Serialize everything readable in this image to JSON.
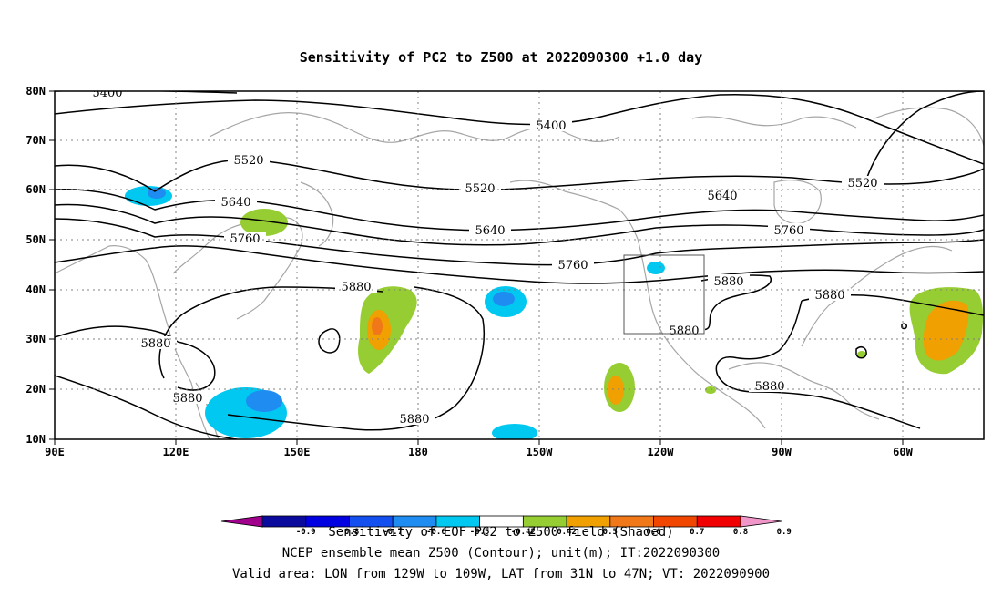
{
  "title": "Sensitivity of PC2 to Z500 at 2022090300 +1.0 day",
  "lon_labels": [
    "90E",
    "120E",
    "150E",
    "180",
    "150W",
    "120W",
    "90W",
    "60W"
  ],
  "lat_labels": [
    "80N",
    "70N",
    "60N",
    "50N",
    "40N",
    "30N",
    "20N",
    "10N"
  ],
  "contour_labels": [
    "5400",
    "5400",
    "5520",
    "5520",
    "5520",
    "5640",
    "5640",
    "5640",
    "5760",
    "5760",
    "5760",
    "5880",
    "5880",
    "5880",
    "5880",
    "5880",
    "5880",
    "5880",
    "5880"
  ],
  "colorbar": {
    "labels": [
      "-0.9",
      "-0.8",
      "-0.7",
      "-0.6",
      "-0.5",
      "-0.42",
      "0.42",
      "0.5",
      "0.6",
      "0.7",
      "0.8",
      "0.9"
    ],
    "colors": [
      "#a0008c",
      "#0a0a9c",
      "#0000e0",
      "#1450f0",
      "#1e8cf0",
      "#00c8f0",
      "#ffffff",
      "#96cd32",
      "#f0a000",
      "#f07818",
      "#f04600",
      "#f00000",
      "#f096c8"
    ]
  },
  "footer": {
    "line1": "Sensitivity of EOF PC2 to Z500 field (Shaded)",
    "line2": "NCEP ensemble mean Z500 (Contour); unit(m); IT:2022090300",
    "line3": "Valid area: LON from 129W to 109W, LAT from 31N to 47N; VT: 2022090900"
  },
  "colors": {
    "contour": "#000000",
    "coastline": "#a6a6a6",
    "grid": "#808080",
    "positive_sensitivity": "#96cd32",
    "strong_positive": "#f0a000",
    "negative_sensitivity": "#00c8f0",
    "strong_negative": "#1e8cf0"
  }
}
